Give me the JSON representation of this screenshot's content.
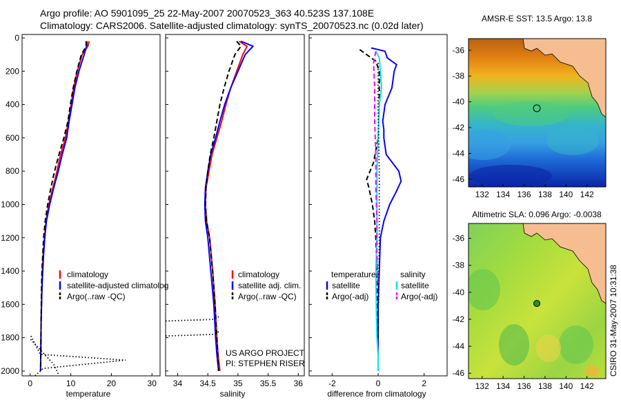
{
  "figure": {
    "title_line1": "Argo profile: AO 5901095_25 22-May-2007 20070523_363 40.523S 137.108E",
    "title_line2": "Climatology: CARS2006. Satellite-adjusted climatology: synTS_20070523.nc (0.02d later)",
    "side_label": "CSIRO 31-May-2007 10:31:38",
    "credit_line1": "US ARGO PROJECT",
    "credit_line2": "PI: STEPHEN RISER"
  },
  "colors": {
    "climatology": "#ff0000",
    "satellite": "#0000ff",
    "argo": "#000000",
    "satellite_salinity": "#00e5ee",
    "argo_salinity": "#ff00ff",
    "land": "#f6be90"
  },
  "chart_data": [
    {
      "type": "line",
      "xlabel": "temperature",
      "ylabel": "",
      "xlim": [
        -2,
        32
      ],
      "ylim": [
        2050,
        0
      ],
      "xticks": [
        "0",
        "10",
        "20",
        "30"
      ],
      "yticks": [
        "0",
        "200",
        "400",
        "600",
        "800",
        "1000",
        "1200",
        "1400",
        "1600",
        "1800",
        "2000"
      ],
      "legend": [
        "climatology",
        "satellite-adjusted climatolog",
        "Argo(..raw -QC)"
      ],
      "legend_position": "lower-right",
      "series": [
        {
          "name": "climatology",
          "style": "solid",
          "x": [
            14.5,
            14.2,
            12.8,
            11.6,
            10.7,
            10.1,
            9.4,
            8.7,
            7.5,
            6.6,
            5.6,
            4.6,
            3.9,
            3.5,
            3.2,
            3.0,
            2.9,
            2.7,
            2.6,
            2.55
          ],
          "y": [
            20,
            50,
            100,
            200,
            300,
            400,
            500,
            600,
            700,
            800,
            900,
            1000,
            1100,
            1200,
            1300,
            1400,
            1500,
            1700,
            1900,
            2000
          ]
        },
        {
          "name": "satellite-adjusted climatolog",
          "style": "solid",
          "x": [
            14.0,
            13.9,
            13.3,
            12.0,
            11.0,
            10.3,
            9.6,
            9.0,
            7.9,
            6.9,
            5.8,
            4.8,
            4.0,
            3.6,
            3.3,
            3.1,
            2.9,
            2.7,
            2.6,
            2.55
          ],
          "y": [
            20,
            50,
            100,
            200,
            300,
            400,
            500,
            600,
            700,
            800,
            900,
            1000,
            1100,
            1200,
            1300,
            1400,
            1500,
            1700,
            1900,
            2000
          ]
        },
        {
          "name": "Argo(..raw -QC)",
          "style": "dashed",
          "x": [
            13.8,
            13.8,
            12.6,
            11.5,
            10.6,
            9.9,
            9.3,
            8.3,
            7.1,
            6.0,
            5.1,
            4.3,
            3.7,
            3.3,
            3.1,
            2.9,
            2.8,
            2.7,
            2.6,
            2.55
          ],
          "y": [
            20,
            50,
            100,
            200,
            300,
            400,
            500,
            600,
            700,
            800,
            900,
            1000,
            1100,
            1200,
            1300,
            1400,
            1500,
            1700,
            1900,
            2000
          ]
        },
        {
          "name": "",
          "style": "dotted",
          "x": [
            0.2,
            2.5,
            23.5,
            3.2,
            0.2
          ],
          "y": [
            1790,
            1900,
            1935,
            1985,
            2050
          ]
        },
        {
          "name": "",
          "style": "dotted",
          "x": [
            0.1,
            5.8,
            7.5
          ],
          "y": [
            1810,
            1960,
            2050
          ]
        }
      ]
    },
    {
      "type": "line",
      "xlabel": "salinity",
      "ylabel": "",
      "xlim": [
        33.8,
        36.1
      ],
      "ylim": [
        2050,
        0
      ],
      "xticks": [
        "34",
        "34.5",
        "35",
        "35.5",
        "36"
      ],
      "legend": [
        "climatology",
        "satellite adj. clim.",
        "Argo(..raw -QC)"
      ],
      "legend_position": "lower-right",
      "series": [
        {
          "name": "climatology",
          "style": "solid",
          "x": [
            35.02,
            35.15,
            35.08,
            34.98,
            34.88,
            34.8,
            34.73,
            34.65,
            34.57,
            34.52,
            34.47,
            34.46,
            34.48,
            34.53,
            34.58,
            34.62,
            34.65,
            34.67,
            34.7
          ],
          "y": [
            20,
            50,
            100,
            200,
            300,
            400,
            500,
            600,
            700,
            800,
            900,
            1000,
            1100,
            1200,
            1400,
            1600,
            1800,
            1900,
            2000
          ]
        },
        {
          "name": "satellite adj. clim.",
          "style": "solid",
          "x": [
            35.05,
            35.25,
            35.12,
            35.0,
            34.88,
            34.78,
            34.7,
            34.63,
            34.55,
            34.5,
            34.46,
            34.45,
            34.46,
            34.5,
            34.55,
            34.6,
            34.63,
            34.65,
            34.68
          ],
          "y": [
            20,
            50,
            100,
            200,
            300,
            400,
            500,
            600,
            700,
            800,
            900,
            1000,
            1100,
            1200,
            1400,
            1600,
            1800,
            1900,
            2000
          ]
        },
        {
          "name": "Argo(..raw -QC)",
          "style": "dashed",
          "x": [
            34.98,
            35.05,
            34.95,
            34.85,
            34.77,
            34.7,
            34.65,
            34.6,
            34.54,
            34.5,
            34.47,
            34.46,
            34.48,
            34.53,
            34.58,
            34.62,
            34.65,
            34.68
          ],
          "y": [
            20,
            50,
            100,
            200,
            300,
            400,
            500,
            600,
            700,
            800,
            900,
            1000,
            1100,
            1200,
            1400,
            1600,
            1800,
            2000
          ]
        },
        {
          "name": "",
          "style": "dotted",
          "x": [
            33.8,
            34.6,
            34.7
          ],
          "y": [
            1700,
            1690,
            1670
          ]
        },
        {
          "name": "",
          "style": "dotted",
          "x": [
            33.8,
            34.6,
            34.7
          ],
          "y": [
            1790,
            1780,
            1760
          ]
        }
      ]
    },
    {
      "type": "line",
      "xlabel": "difference from climatology",
      "ylabel": "",
      "xlim": [
        -3,
        3
      ],
      "ylim": [
        2050,
        0
      ],
      "xticks": [
        "-2",
        "0",
        "2"
      ],
      "legend": [
        "temperature",
        "satellite",
        "Argo(-adj)",
        "salinity",
        "satellite",
        "Argo(-adj)"
      ],
      "legend_position": "lower",
      "series": [
        {
          "name": "satellite",
          "style": "solid",
          "x": [
            -0.3,
            0.3,
            0.4,
            0.8,
            0.7,
            0.6,
            0.3,
            0.2,
            0.25,
            0.25,
            0.35,
            0.9,
            1.0,
            0.8,
            0.5,
            0.25,
            0.1,
            0.05,
            0.0,
            0.0
          ],
          "y": [
            60,
            80,
            120,
            160,
            200,
            300,
            400,
            500,
            550,
            600,
            700,
            800,
            860,
            920,
            1000,
            1100,
            1200,
            1400,
            1600,
            2000
          ]
        },
        {
          "name": "Argo(-adj)",
          "style": "dashed",
          "x": [
            -0.8,
            -0.4,
            -0.1,
            0.05,
            0.05,
            0.0,
            -0.2,
            -0.5,
            -0.4,
            -0.25,
            -0.15,
            -0.1,
            -0.05,
            0.0
          ],
          "y": [
            70,
            110,
            140,
            200,
            400,
            600,
            750,
            850,
            900,
            1000,
            1100,
            1200,
            1400,
            1800
          ]
        },
        {
          "name": "satellite",
          "style": "solid",
          "x": [
            -0.1,
            0.05,
            0.1,
            0.15,
            0.05,
            0.0,
            -0.05,
            -0.05,
            -0.05,
            -0.1,
            -0.08,
            -0.05,
            0.0,
            0.0
          ],
          "y": [
            80,
            120,
            200,
            300,
            400,
            600,
            800,
            1000,
            1200,
            1400,
            1600,
            1800,
            1900,
            2000
          ]
        },
        {
          "name": "Argo(-adj)",
          "style": "dashed",
          "x": [
            -0.1,
            -0.2,
            -0.15,
            -0.15,
            -0.1,
            -0.1,
            -0.05,
            -0.05,
            0.0
          ],
          "y": [
            80,
            150,
            300,
            500,
            700,
            900,
            1100,
            1300,
            1500
          ]
        },
        {
          "name": "",
          "style": "dotted",
          "x": [
            0.0,
            0.0,
            0.05,
            0.05,
            0.02
          ],
          "y": [
            150,
            400,
            800,
            1200,
            1600
          ]
        }
      ]
    },
    {
      "type": "heatmap",
      "title": "AMSR-E SST: 13.5  Argo: 13.8",
      "xticks": [
        "132",
        "134",
        "136",
        "138",
        "140",
        "142"
      ],
      "yticks": [
        "-36",
        "-38",
        "-40",
        "-42",
        "-44",
        "-46"
      ],
      "xlim": [
        130.7,
        143.8
      ],
      "ylim": [
        -46.6,
        -35.1
      ],
      "marker": {
        "lon": 137.108,
        "lat": -40.523,
        "value": 13.8
      }
    },
    {
      "type": "heatmap",
      "title": "Altimetric SLA: 0.096  Argo: -0.0038",
      "xticks": [
        "132",
        "134",
        "136",
        "138",
        "140",
        "142"
      ],
      "yticks": [
        "-36",
        "-38",
        "-40",
        "-42",
        "-44",
        "-46"
      ],
      "xlim": [
        130.7,
        143.8
      ],
      "ylim": [
        -46.4,
        -34.9
      ],
      "marker": {
        "lon": 137.108,
        "lat": -40.523,
        "value": -0.0038
      }
    }
  ]
}
